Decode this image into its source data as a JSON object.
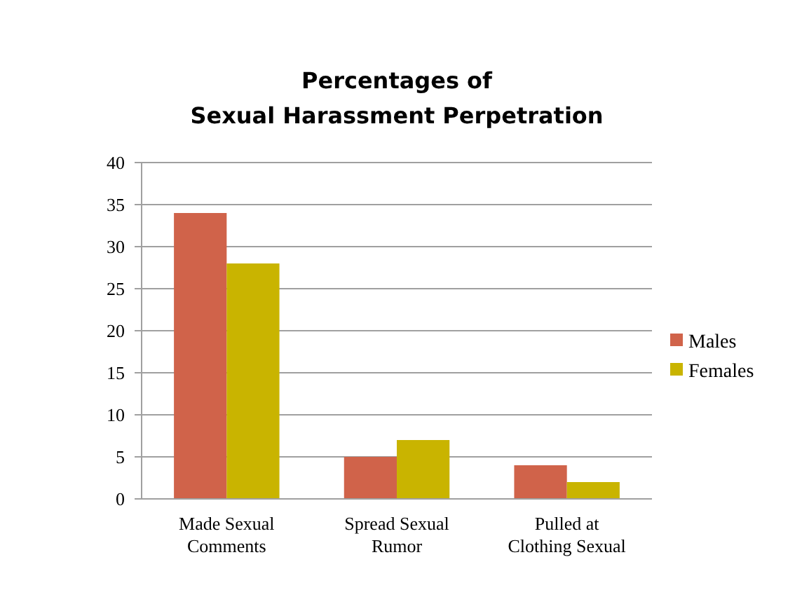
{
  "chart_data": {
    "type": "bar",
    "title": "Percentages of\nSexual Harassment Perpetration",
    "categories": [
      "Made Sexual Comments",
      "Spread Sexual Rumor",
      "Pulled at Clothing Sexual"
    ],
    "series": [
      {
        "name": "Males",
        "color": "#d0634a",
        "values": [
          34,
          5,
          4
        ]
      },
      {
        "name": "Females",
        "color": "#c9b400",
        "values": [
          28,
          7,
          2
        ]
      }
    ],
    "ylim": [
      0,
      40
    ],
    "yticks": [
      0,
      5,
      10,
      15,
      20,
      25,
      30,
      35,
      40
    ],
    "grid": "y",
    "legend": "right"
  }
}
